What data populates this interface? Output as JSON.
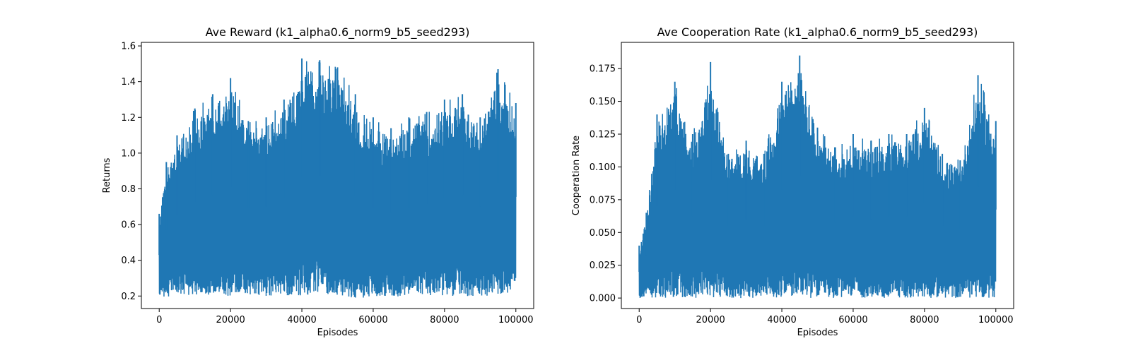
{
  "chart_data": [
    {
      "type": "line",
      "title": "Ave Reward (k1_alpha0.6_norm9_b5_seed293)",
      "xlabel": "Episodes",
      "ylabel": "Returns",
      "xlim": [
        -5000,
        105000
      ],
      "ylim": [
        0.13,
        1.62
      ],
      "xticks": [
        0,
        20000,
        40000,
        60000,
        80000,
        100000
      ],
      "xtick_labels": [
        "0",
        "20000",
        "40000",
        "60000",
        "80000",
        "100000"
      ],
      "yticks": [
        0.2,
        0.4,
        0.6,
        0.8,
        1.0,
        1.2,
        1.4,
        1.6
      ],
      "ytick_labels": [
        "0.2",
        "0.4",
        "0.6",
        "0.8",
        "1.0",
        "1.2",
        "1.4",
        "1.6"
      ],
      "grid": false,
      "series_color": "#1f77b4",
      "series": [
        {
          "x": [
            0,
            2000,
            5000,
            10000,
            15000,
            20000,
            25000,
            30000,
            35000,
            40000,
            45000,
            50000,
            55000,
            60000,
            65000,
            70000,
            75000,
            80000,
            85000,
            90000,
            95000,
            100000
          ],
          "upper": [
            0.66,
            0.95,
            1.1,
            1.25,
            1.33,
            1.42,
            1.18,
            1.2,
            1.3,
            1.53,
            1.52,
            1.48,
            1.33,
            1.2,
            1.14,
            1.2,
            1.23,
            1.3,
            1.33,
            1.2,
            1.47,
            1.28
          ],
          "lower": [
            0.2,
            0.19,
            0.21,
            0.2,
            0.2,
            0.2,
            0.21,
            0.2,
            0.2,
            0.2,
            0.22,
            0.2,
            0.19,
            0.19,
            0.2,
            0.19,
            0.2,
            0.2,
            0.2,
            0.2,
            0.2,
            0.23
          ]
        }
      ]
    },
    {
      "type": "line",
      "title": "Ave Cooperation Rate (k1_alpha0.6_norm9_b5_seed293)",
      "xlabel": "Episodes",
      "ylabel": "Cooperation Rate",
      "xlim": [
        -5000,
        105000
      ],
      "ylim": [
        -0.008,
        0.195
      ],
      "xticks": [
        0,
        20000,
        40000,
        60000,
        80000,
        100000
      ],
      "xtick_labels": [
        "0",
        "20000",
        "40000",
        "60000",
        "80000",
        "100000"
      ],
      "yticks": [
        0.0,
        0.025,
        0.05,
        0.075,
        0.1,
        0.125,
        0.15,
        0.175
      ],
      "ytick_labels": [
        "0.000",
        "0.025",
        "0.050",
        "0.075",
        "0.100",
        "0.125",
        "0.150",
        "0.175"
      ],
      "grid": false,
      "series_color": "#1f77b4",
      "series": [
        {
          "x": [
            0,
            2000,
            5000,
            10000,
            15000,
            20000,
            25000,
            30000,
            35000,
            40000,
            45000,
            50000,
            55000,
            60000,
            65000,
            70000,
            75000,
            80000,
            85000,
            90000,
            95000,
            100000
          ],
          "upper": [
            0.04,
            0.065,
            0.14,
            0.165,
            0.125,
            0.18,
            0.11,
            0.12,
            0.11,
            0.165,
            0.185,
            0.13,
            0.115,
            0.125,
            0.12,
            0.125,
            0.125,
            0.145,
            0.11,
            0.105,
            0.17,
            0.135
          ],
          "lower": [
            0,
            0,
            0,
            0,
            0,
            0,
            0,
            0,
            0,
            0,
            0,
            0,
            0,
            0,
            0,
            0,
            0,
            0,
            0,
            0,
            0,
            0
          ]
        }
      ]
    }
  ]
}
